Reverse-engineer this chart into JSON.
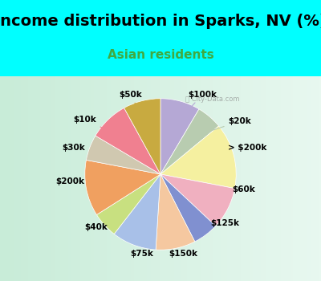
{
  "title": "Income distribution in Sparks, NV (%)",
  "subtitle": "Asian residents",
  "background_color": "#00FFFF",
  "chart_bg_start": "#e8f5e9",
  "chart_bg_end": "#f0fff0",
  "labels": [
    "$100k",
    "$20k",
    "> $200k",
    "$60k",
    "$125k",
    "$150k",
    "$75k",
    "$40k",
    "$200k",
    "$30k",
    "$10k",
    "$50k"
  ],
  "sizes": [
    8.5,
    5.5,
    14.0,
    9.0,
    5.5,
    8.5,
    9.5,
    5.5,
    12.0,
    5.5,
    8.5,
    8.0
  ],
  "colors": [
    "#b5a8d5",
    "#b8ccb0",
    "#f5f0a0",
    "#f0b0c0",
    "#8090d0",
    "#f5c8a0",
    "#a8c0e8",
    "#c8e080",
    "#f0a060",
    "#d0c8b0",
    "#f08090",
    "#c8aa40"
  ],
  "title_fontsize": 14,
  "subtitle_fontsize": 11,
  "subtitle_color": "#40aa40",
  "title_color": "#000000"
}
